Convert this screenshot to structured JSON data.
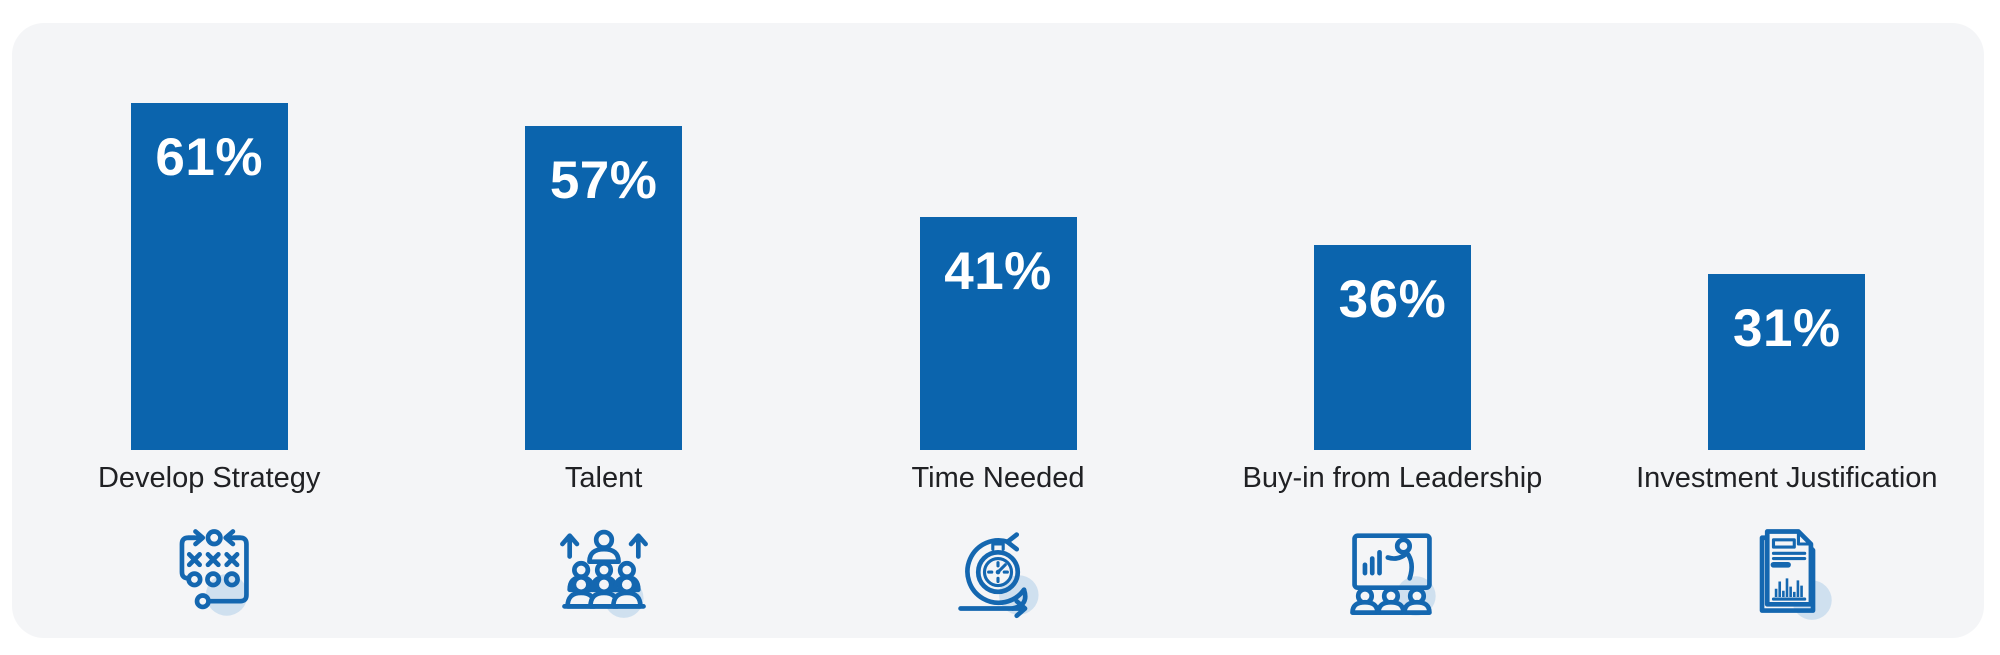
{
  "colors": {
    "page_background": "#ffffff",
    "card_background": "#f4f5f7",
    "bar": "#0b64ad",
    "value_text": "#ffffff",
    "label_text": "#202124",
    "icon_stroke": "#1467b0",
    "icon_shadow": "#cfe0ef"
  },
  "chart_data": {
    "type": "bar",
    "orientation": "vertical",
    "categories": [
      "Develop Strategy",
      "Talent",
      "Time Needed",
      "Buy-in from Leadership",
      "Investment Justification"
    ],
    "values": [
      61,
      57,
      41,
      36,
      31
    ],
    "display_values": [
      "61%",
      "57%",
      "41%",
      "36%",
      "31%"
    ],
    "unit": "%",
    "value_label_position": "inside-top",
    "grid": false,
    "axes_visible": false,
    "legend": false,
    "icons": [
      "strategy-tactics-icon",
      "talent-growth-icon",
      "time-sprint-icon",
      "leadership-presentation-icon",
      "investment-report-icon"
    ]
  }
}
